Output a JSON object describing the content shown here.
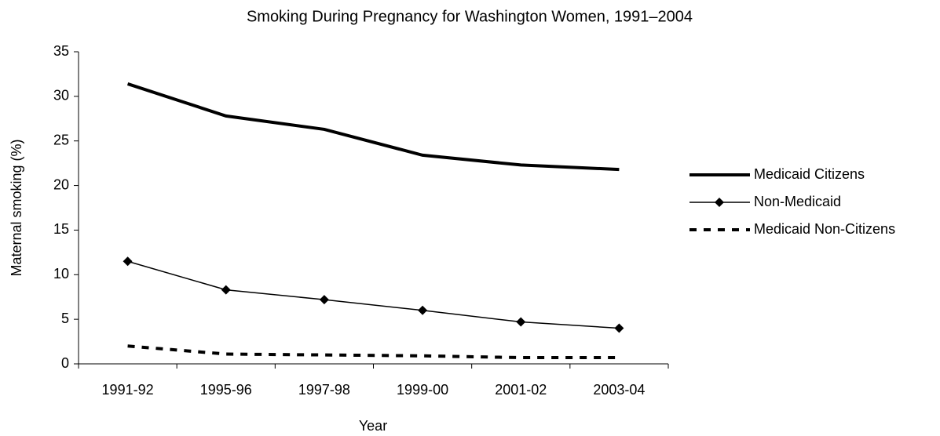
{
  "chart_data": {
    "type": "line",
    "title": "Smoking During Pregnancy for Washington Women, 1991–2004",
    "x_label": "Year",
    "y_label": "Maternal smoking (%)",
    "categories": [
      "1991-92",
      "1995-96",
      "1997-98",
      "1999-00",
      "2001-02",
      "2003-04"
    ],
    "series": [
      {
        "name": "Medicaid Citizens",
        "color": "#000000",
        "line_width": 4,
        "dash": "solid",
        "marker": "none",
        "values": [
          31.4,
          27.8,
          26.3,
          23.4,
          22.3,
          21.8
        ]
      },
      {
        "name": "Non-Medicaid",
        "color": "#000000",
        "line_width": 1.5,
        "dash": "solid",
        "marker": "diamond",
        "values": [
          11.5,
          8.3,
          7.2,
          6.0,
          4.7,
          4.0
        ]
      },
      {
        "name": "Medicaid Non-Citizens",
        "color": "#000000",
        "line_width": 4,
        "dash": "dashed",
        "marker": "none",
        "values": [
          2.0,
          1.1,
          1.0,
          0.9,
          0.7,
          0.7
        ]
      }
    ],
    "ylim": [
      0,
      35
    ],
    "yticks": [
      0,
      5,
      10,
      15,
      20,
      25,
      30,
      35
    ],
    "grid": false,
    "legend": "right"
  }
}
